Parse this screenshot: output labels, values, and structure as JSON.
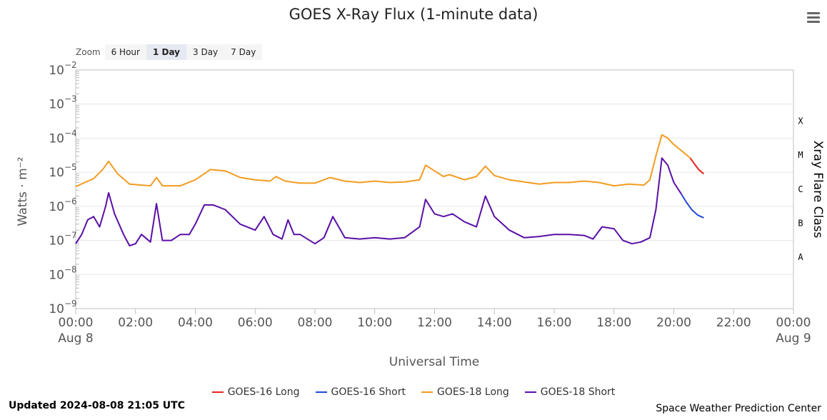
{
  "title": "GOES X-Ray Flux (1-minute data)",
  "zoom": {
    "label": "Zoom",
    "buttons": [
      "6 Hour",
      "1 Day",
      "3 Day",
      "7 Day"
    ],
    "active": "1 Day"
  },
  "footer": {
    "updated": "Updated 2024-08-08 21:05 UTC",
    "credit": "Space Weather Prediction Center"
  },
  "chart_data": {
    "type": "line",
    "title": "GOES X-Ray Flux (1-minute data)",
    "xlabel": "Universal Time",
    "ylabel": "Watts · m⁻²",
    "y2label": "Xray Flare Class",
    "yscale": "log",
    "ylim": [
      1e-09,
      0.01
    ],
    "xlim": [
      0,
      24
    ],
    "x_ticks": [
      {
        "hour": 0,
        "label": "00:00",
        "sub": "Aug 8"
      },
      {
        "hour": 2,
        "label": "02:00"
      },
      {
        "hour": 4,
        "label": "04:00"
      },
      {
        "hour": 6,
        "label": "06:00"
      },
      {
        "hour": 8,
        "label": "08:00"
      },
      {
        "hour": 10,
        "label": "10:00"
      },
      {
        "hour": 12,
        "label": "12:00"
      },
      {
        "hour": 14,
        "label": "14:00"
      },
      {
        "hour": 16,
        "label": "16:00"
      },
      {
        "hour": 18,
        "label": "18:00"
      },
      {
        "hour": 20,
        "label": "20:00"
      },
      {
        "hour": 22,
        "label": "22:00"
      },
      {
        "hour": 24,
        "label": "00:00",
        "sub": "Aug 9"
      }
    ],
    "y_ticks": [
      {
        "exp": -2,
        "label": "10",
        "sup": "−2"
      },
      {
        "exp": -3,
        "label": "10",
        "sup": "−3"
      },
      {
        "exp": -4,
        "label": "10",
        "sup": "−4"
      },
      {
        "exp": -5,
        "label": "10",
        "sup": "−5"
      },
      {
        "exp": -6,
        "label": "10",
        "sup": "−6"
      },
      {
        "exp": -7,
        "label": "10",
        "sup": "−7"
      },
      {
        "exp": -8,
        "label": "10",
        "sup": "−8"
      },
      {
        "exp": -9,
        "label": "10",
        "sup": "−9"
      }
    ],
    "flare_classes": [
      {
        "label": "X",
        "flux": 0.00032
      },
      {
        "label": "M",
        "flux": 3.2e-05
      },
      {
        "label": "C",
        "flux": 3.2e-06
      },
      {
        "label": "B",
        "flux": 3.2e-07
      },
      {
        "label": "A",
        "flux": 3.2e-08
      }
    ],
    "legend_position": "bottom-center",
    "series": [
      {
        "name": "GOES-16 Long",
        "color": "#e8221f",
        "x": [
          20.55,
          20.7,
          20.85,
          21.0
        ],
        "y": [
          2.6e-05,
          1.7e-05,
          1.15e-05,
          9e-06
        ]
      },
      {
        "name": "GOES-16 Short",
        "color": "#2148d8",
        "x": [
          20.25,
          20.4,
          20.6,
          20.8,
          21.0
        ],
        "y": [
          2.3e-06,
          1.4e-06,
          8e-07,
          5.5e-07,
          4.6e-07
        ]
      },
      {
        "name": "GOES-18 Long",
        "color": "#f29c1f",
        "x": [
          0.0,
          0.3,
          0.6,
          0.9,
          1.1,
          1.4,
          1.8,
          2.5,
          2.7,
          2.9,
          3.5,
          4.0,
          4.5,
          5.0,
          5.5,
          6.0,
          6.5,
          6.7,
          7.0,
          7.5,
          8.0,
          8.5,
          9.0,
          9.5,
          10.0,
          10.5,
          11.0,
          11.5,
          11.7,
          12.0,
          12.3,
          12.5,
          13.0,
          13.4,
          13.7,
          14.0,
          14.5,
          15.0,
          15.5,
          16.0,
          16.5,
          17.0,
          17.5,
          18.0,
          18.5,
          19.0,
          19.2,
          19.4,
          19.6,
          19.8,
          20.0,
          20.3,
          20.55
        ],
        "y": [
          3.8e-06,
          5e-06,
          6.5e-06,
          1.2e-05,
          2.1e-05,
          9e-06,
          4.5e-06,
          4e-06,
          7e-06,
          4e-06,
          4e-06,
          6e-06,
          1.2e-05,
          1.1e-05,
          7e-06,
          6e-06,
          5.5e-06,
          7.5e-06,
          5.5e-06,
          4.8e-06,
          4.8e-06,
          7e-06,
          5.5e-06,
          5e-06,
          5.5e-06,
          5e-06,
          5.2e-06,
          6e-06,
          1.6e-05,
          1.1e-05,
          7.5e-06,
          8.5e-06,
          6e-06,
          7.5e-06,
          1.5e-05,
          8e-06,
          6e-06,
          5.2e-06,
          4.5e-06,
          5e-06,
          5e-06,
          5.5e-06,
          5e-06,
          4e-06,
          4.5e-06,
          4.2e-06,
          6e-06,
          3e-05,
          0.000125,
          0.0001,
          6.5e-05,
          4e-05,
          2.6e-05
        ]
      },
      {
        "name": "GOES-18 Short",
        "color": "#5a0fa6",
        "x": [
          0.0,
          0.2,
          0.4,
          0.6,
          0.8,
          1.0,
          1.1,
          1.3,
          1.6,
          1.8,
          2.0,
          2.2,
          2.5,
          2.7,
          2.9,
          3.2,
          3.5,
          3.8,
          4.0,
          4.3,
          4.6,
          5.0,
          5.5,
          6.0,
          6.3,
          6.6,
          6.9,
          7.1,
          7.3,
          7.5,
          8.0,
          8.3,
          8.6,
          9.0,
          9.5,
          10.0,
          10.5,
          11.0,
          11.5,
          11.7,
          12.0,
          12.3,
          12.6,
          13.0,
          13.4,
          13.7,
          14.0,
          14.5,
          15.0,
          15.5,
          16.0,
          16.5,
          17.0,
          17.3,
          17.6,
          18.0,
          18.3,
          18.6,
          18.9,
          19.2,
          19.4,
          19.6,
          19.8,
          20.0,
          20.25
        ],
        "y": [
          8e-08,
          1.5e-07,
          4e-07,
          5e-07,
          2.5e-07,
          1e-06,
          2.5e-06,
          6e-07,
          1.5e-07,
          7e-08,
          8e-08,
          1.5e-07,
          9e-08,
          1.2e-06,
          1e-07,
          1e-07,
          1.5e-07,
          1.5e-07,
          3e-07,
          1.1e-06,
          1.1e-06,
          8e-07,
          3e-07,
          2e-07,
          5e-07,
          1.5e-07,
          1.1e-07,
          4e-07,
          1.5e-07,
          1.5e-07,
          8e-08,
          1.2e-07,
          5e-07,
          1.2e-07,
          1.1e-07,
          1.2e-07,
          1.1e-07,
          1.2e-07,
          2.5e-07,
          1.6e-06,
          6e-07,
          5e-07,
          6e-07,
          3.5e-07,
          2.5e-07,
          2e-06,
          5e-07,
          2e-07,
          1.2e-07,
          1.3e-07,
          1.5e-07,
          1.5e-07,
          1.4e-07,
          1.1e-07,
          2.5e-07,
          2.2e-07,
          1e-07,
          8e-08,
          9e-08,
          1.2e-07,
          8e-07,
          2.6e-05,
          1.6e-05,
          5e-06,
          2.3e-06
        ]
      }
    ]
  }
}
